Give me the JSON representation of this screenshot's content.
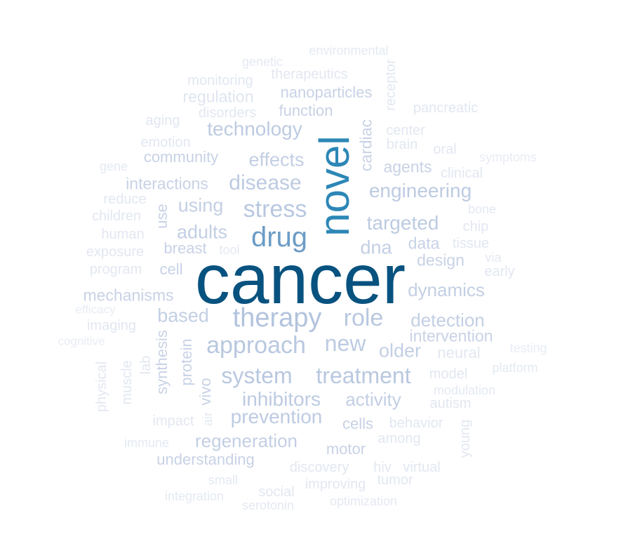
{
  "words": [
    {
      "text": "cancer",
      "color": "#08527f"
    },
    {
      "text": "novel",
      "color": "#2c87b6"
    },
    {
      "text": "drug",
      "color": "#6c9cc6"
    },
    {
      "text": "therapy",
      "color": "#b3c3de"
    },
    {
      "text": "stress",
      "color": "#b9c8e0"
    },
    {
      "text": "approach",
      "color": "#b9c8e0"
    },
    {
      "text": "role",
      "color": "#b9c8e0"
    },
    {
      "text": "treatment",
      "color": "#b9c8e0"
    },
    {
      "text": "system",
      "color": "#b9c8e0"
    },
    {
      "text": "new",
      "color": "#bdcbe2"
    },
    {
      "text": "disease",
      "color": "#bdcbe2"
    },
    {
      "text": "technology",
      "color": "#bdcbe2"
    },
    {
      "text": "inhibitors",
      "color": "#bdcbe2"
    },
    {
      "text": "targeted",
      "color": "#bdcbe2"
    },
    {
      "text": "engineering",
      "color": "#bdcbe2"
    },
    {
      "text": "prevention",
      "color": "#bdcbe2"
    },
    {
      "text": "effects",
      "color": "#c3cfe4"
    },
    {
      "text": "using",
      "color": "#c3cfe4"
    },
    {
      "text": "adults",
      "color": "#c3cfe4"
    },
    {
      "text": "dna",
      "color": "#c3cfe4"
    },
    {
      "text": "based",
      "color": "#c3cfe4"
    },
    {
      "text": "older",
      "color": "#c3cfe4"
    },
    {
      "text": "detection",
      "color": "#c3cfe4"
    },
    {
      "text": "dynamics",
      "color": "#c3cfe4"
    },
    {
      "text": "regeneration",
      "color": "#c3cfe4"
    },
    {
      "text": "activity",
      "color": "#c3cfe4"
    },
    {
      "text": "interactions",
      "color": "#c8d2e6"
    },
    {
      "text": "mechanisms",
      "color": "#c8d2e6"
    },
    {
      "text": "intervention",
      "color": "#c8d2e6"
    },
    {
      "text": "design",
      "color": "#c8d2e6"
    },
    {
      "text": "data",
      "color": "#c8d2e6"
    },
    {
      "text": "agents",
      "color": "#c8d2e6"
    },
    {
      "text": "cardiac",
      "color": "#c8d2e6"
    },
    {
      "text": "nanoparticles",
      "color": "#c8d2e6"
    },
    {
      "text": "function",
      "color": "#c8d2e6"
    },
    {
      "text": "community",
      "color": "#c8d2e6"
    },
    {
      "text": "breast",
      "color": "#c8d2e6"
    },
    {
      "text": "cell",
      "color": "#c8d2e6"
    },
    {
      "text": "use",
      "color": "#c8d2e6"
    },
    {
      "text": "synthesis",
      "color": "#c8d2e6"
    },
    {
      "text": "protein",
      "color": "#c8d2e6"
    },
    {
      "text": "vivo",
      "color": "#c8d2e6"
    },
    {
      "text": "understanding",
      "color": "#c8d2e6"
    },
    {
      "text": "motor",
      "color": "#c8d2e6"
    },
    {
      "text": "cells",
      "color": "#c8d2e6"
    },
    {
      "text": "regulation",
      "color": "#dfe5f0"
    },
    {
      "text": "monitoring",
      "color": "#e2e7f1"
    },
    {
      "text": "therapeutics",
      "color": "#e2e7f1"
    },
    {
      "text": "disorders",
      "color": "#e2e7f1"
    },
    {
      "text": "aging",
      "color": "#e2e7f1"
    },
    {
      "text": "emotion",
      "color": "#e2e7f1"
    },
    {
      "text": "gene",
      "color": "#e4e9f2"
    },
    {
      "text": "reduce",
      "color": "#e2e7f1"
    },
    {
      "text": "children",
      "color": "#e2e7f1"
    },
    {
      "text": "human",
      "color": "#e2e7f1"
    },
    {
      "text": "exposure",
      "color": "#e2e7f1"
    },
    {
      "text": "tool",
      "color": "#e4e9f2"
    },
    {
      "text": "program",
      "color": "#e2e7f1"
    },
    {
      "text": "efficacy",
      "color": "#e8ecf4"
    },
    {
      "text": "imaging",
      "color": "#e2e7f1"
    },
    {
      "text": "cognitive",
      "color": "#e8ecf4"
    },
    {
      "text": "physical",
      "color": "#e2e7f1"
    },
    {
      "text": "muscle",
      "color": "#e2e7f1"
    },
    {
      "text": "lab",
      "color": "#e2e7f1"
    },
    {
      "text": "air",
      "color": "#e4e9f2"
    },
    {
      "text": "impact",
      "color": "#e2e7f1"
    },
    {
      "text": "immune",
      "color": "#e4e9f2"
    },
    {
      "text": "small",
      "color": "#e4e9f2"
    },
    {
      "text": "integration",
      "color": "#e4e9f2"
    },
    {
      "text": "social",
      "color": "#e2e7f1"
    },
    {
      "text": "serotonin",
      "color": "#e4e9f2"
    },
    {
      "text": "discovery",
      "color": "#e2e7f1"
    },
    {
      "text": "improving",
      "color": "#e2e7f1"
    },
    {
      "text": "optimization",
      "color": "#e4e9f2"
    },
    {
      "text": "hiv",
      "color": "#e2e7f1"
    },
    {
      "text": "virtual",
      "color": "#e2e7f1"
    },
    {
      "text": "tumor",
      "color": "#e2e7f1"
    },
    {
      "text": "among",
      "color": "#e2e7f1"
    },
    {
      "text": "young",
      "color": "#e2e7f1"
    },
    {
      "text": "behavior",
      "color": "#e2e7f1"
    },
    {
      "text": "autism",
      "color": "#e2e7f1"
    },
    {
      "text": "modulation",
      "color": "#e4e9f2"
    },
    {
      "text": "model",
      "color": "#e2e7f1"
    },
    {
      "text": "platform",
      "color": "#e4e9f2"
    },
    {
      "text": "testing",
      "color": "#e8ecf4"
    },
    {
      "text": "neural",
      "color": "#e2e7f1"
    },
    {
      "text": "early",
      "color": "#e2e7f1"
    },
    {
      "text": "via",
      "color": "#e4e9f2"
    },
    {
      "text": "tissue",
      "color": "#e2e7f1"
    },
    {
      "text": "chip",
      "color": "#e2e7f1"
    },
    {
      "text": "bone",
      "color": "#e4e9f2"
    },
    {
      "text": "clinical",
      "color": "#e2e7f1"
    },
    {
      "text": "symptoms",
      "color": "#e8ecf4"
    },
    {
      "text": "oral",
      "color": "#e2e7f1"
    },
    {
      "text": "brain",
      "color": "#e2e7f1"
    },
    {
      "text": "center",
      "color": "#e2e7f1"
    },
    {
      "text": "pancreatic",
      "color": "#e2e7f1"
    },
    {
      "text": "receptor",
      "color": "#e2e7f1"
    },
    {
      "text": "environmental",
      "color": "#e4e9f2"
    },
    {
      "text": "genetic",
      "color": "#e4e9f2"
    }
  ]
}
